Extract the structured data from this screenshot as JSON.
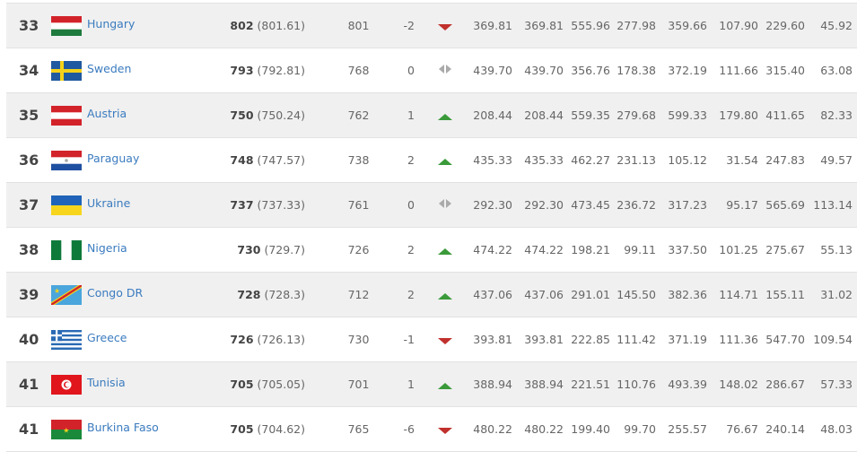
{
  "colors": {
    "up": "#3a9a3a",
    "down": "#c0302c",
    "neutral": "#aaaaaa",
    "link": "#3a7bbf",
    "alt_row": "#f0f0f0"
  },
  "rows": [
    {
      "rank": "33",
      "country": "Hungary",
      "flag": "hungary",
      "points": "802",
      "points_exact": "(801.61)",
      "previous": "801",
      "change": "-2",
      "trend": "down",
      "values": [
        "369.81",
        "369.81",
        "555.96",
        "277.98",
        "359.66",
        "107.90",
        "229.60",
        "45.92"
      ]
    },
    {
      "rank": "34",
      "country": "Sweden",
      "flag": "sweden",
      "points": "793",
      "points_exact": "(792.81)",
      "previous": "768",
      "change": "0",
      "trend": "neutral",
      "values": [
        "439.70",
        "439.70",
        "356.76",
        "178.38",
        "372.19",
        "111.66",
        "315.40",
        "63.08"
      ]
    },
    {
      "rank": "35",
      "country": "Austria",
      "flag": "austria",
      "points": "750",
      "points_exact": "(750.24)",
      "previous": "762",
      "change": "1",
      "trend": "up",
      "values": [
        "208.44",
        "208.44",
        "559.35",
        "279.68",
        "599.33",
        "179.80",
        "411.65",
        "82.33"
      ]
    },
    {
      "rank": "36",
      "country": "Paraguay",
      "flag": "paraguay",
      "points": "748",
      "points_exact": "(747.57)",
      "previous": "738",
      "change": "2",
      "trend": "up",
      "values": [
        "435.33",
        "435.33",
        "462.27",
        "231.13",
        "105.12",
        "31.54",
        "247.83",
        "49.57"
      ]
    },
    {
      "rank": "37",
      "country": "Ukraine",
      "flag": "ukraine",
      "points": "737",
      "points_exact": "(737.33)",
      "previous": "761",
      "change": "0",
      "trend": "neutral",
      "values": [
        "292.30",
        "292.30",
        "473.45",
        "236.72",
        "317.23",
        "95.17",
        "565.69",
        "113.14"
      ]
    },
    {
      "rank": "38",
      "country": "Nigeria",
      "flag": "nigeria",
      "points": "730",
      "points_exact": "(729.7)",
      "previous": "726",
      "change": "2",
      "trend": "up",
      "values": [
        "474.22",
        "474.22",
        "198.21",
        "99.11",
        "337.50",
        "101.25",
        "275.67",
        "55.13"
      ]
    },
    {
      "rank": "39",
      "country": "Congo DR",
      "flag": "congo-dr",
      "points": "728",
      "points_exact": "(728.3)",
      "previous": "712",
      "change": "2",
      "trend": "up",
      "values": [
        "437.06",
        "437.06",
        "291.01",
        "145.50",
        "382.36",
        "114.71",
        "155.11",
        "31.02"
      ]
    },
    {
      "rank": "40",
      "country": "Greece",
      "flag": "greece",
      "points": "726",
      "points_exact": "(726.13)",
      "previous": "730",
      "change": "-1",
      "trend": "down",
      "values": [
        "393.81",
        "393.81",
        "222.85",
        "111.42",
        "371.19",
        "111.36",
        "547.70",
        "109.54"
      ]
    },
    {
      "rank": "41",
      "country": "Tunisia",
      "flag": "tunisia",
      "points": "705",
      "points_exact": "(705.05)",
      "previous": "701",
      "change": "1",
      "trend": "up",
      "values": [
        "388.94",
        "388.94",
        "221.51",
        "110.76",
        "493.39",
        "148.02",
        "286.67",
        "57.33"
      ]
    },
    {
      "rank": "41",
      "country": "Burkina Faso",
      "flag": "burkina-faso",
      "points": "705",
      "points_exact": "(704.62)",
      "previous": "765",
      "change": "-6",
      "trend": "down",
      "values": [
        "480.22",
        "480.22",
        "199.40",
        "99.70",
        "255.57",
        "76.67",
        "240.14",
        "48.03"
      ]
    }
  ]
}
